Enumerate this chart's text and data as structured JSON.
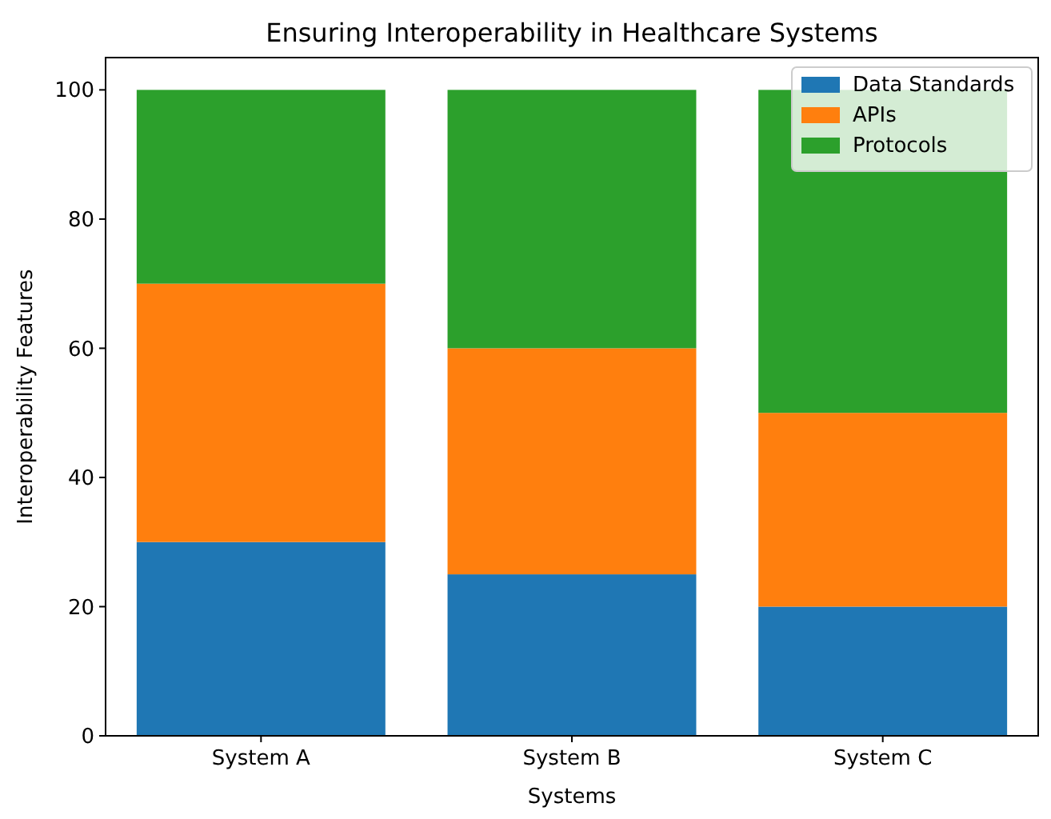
{
  "chart_data": {
    "type": "bar",
    "title": "Ensuring Interoperability in Healthcare Systems",
    "xlabel": "Systems",
    "ylabel": "Interoperability Features",
    "categories": [
      "System A",
      "System B",
      "System C"
    ],
    "stacked": true,
    "legend": "top right",
    "ylim": [
      0,
      105
    ],
    "yticks": [
      0,
      20,
      40,
      60,
      80,
      100
    ],
    "series": [
      {
        "name": "Data Standards",
        "color": "#1f77b4",
        "values": [
          30,
          25,
          20
        ]
      },
      {
        "name": "APIs",
        "color": "#ff7f0e",
        "values": [
          40,
          35,
          30
        ]
      },
      {
        "name": "Protocols",
        "color": "#2ca02c",
        "values": [
          30,
          40,
          50
        ]
      }
    ]
  }
}
